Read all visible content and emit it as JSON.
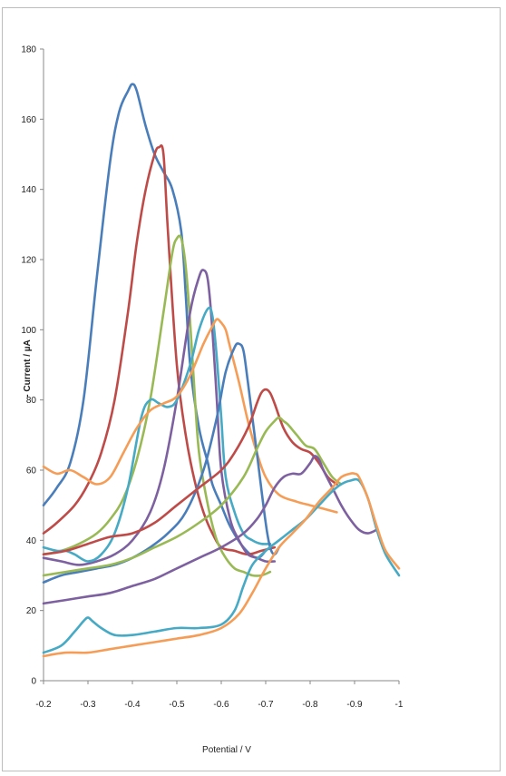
{
  "chart_data": {
    "type": "line",
    "xlabel": "Potential / V",
    "ylabel": "- Current / µA",
    "xlim": [
      -0.2,
      -1.0
    ],
    "ylim": [
      0,
      180
    ],
    "x_ticks": [
      "-0.2",
      "-0.3",
      "-0.4",
      "-0.5",
      "-0.6",
      "-0.7",
      "-0.8",
      "-0.9",
      "-1"
    ],
    "y_ticks": [
      "0",
      "20",
      "40",
      "60",
      "80",
      "100",
      "120",
      "140",
      "160",
      "180"
    ],
    "grid": false,
    "legend": "none",
    "series": [
      {
        "color": "#4a7ebb",
        "x": [
          -0.2,
          -0.23,
          -0.26,
          -0.29,
          -0.32,
          -0.35,
          -0.37,
          -0.39,
          -0.4,
          -0.41,
          -0.43,
          -0.45,
          -0.47,
          -0.49,
          -0.51,
          -0.52,
          -0.53,
          -0.55,
          -0.57,
          -0.58,
          -0.6,
          -0.62,
          -0.65,
          -0.68,
          -0.7
        ],
        "y": [
          50,
          55,
          62,
          80,
          115,
          148,
          162,
          168,
          170,
          168,
          158,
          150,
          145,
          140,
          128,
          110,
          90,
          72,
          62,
          56,
          50,
          44,
          38,
          35,
          37
        ]
      },
      {
        "color": "#be4b48",
        "x": [
          -0.2,
          -0.23,
          -0.27,
          -0.3,
          -0.33,
          -0.36,
          -0.39,
          -0.41,
          -0.43,
          -0.45,
          -0.46,
          -0.47,
          -0.48,
          -0.5,
          -0.52,
          -0.54,
          -0.56,
          -0.58,
          -0.6,
          -0.63,
          -0.66,
          -0.69,
          -0.72
        ],
        "y": [
          42,
          45,
          50,
          56,
          65,
          80,
          105,
          125,
          140,
          150,
          152,
          150,
          128,
          90,
          70,
          57,
          48,
          42,
          38,
          37,
          36,
          37,
          38
        ]
      },
      {
        "color": "#98b954",
        "x": [
          -0.2,
          -0.24,
          -0.28,
          -0.32,
          -0.35,
          -0.38,
          -0.41,
          -0.44,
          -0.47,
          -0.49,
          -0.5,
          -0.51,
          -0.52,
          -0.53,
          -0.54,
          -0.55,
          -0.57,
          -0.59,
          -0.61,
          -0.63,
          -0.65,
          -0.67,
          -0.69,
          -0.71
        ],
        "y": [
          36,
          37,
          39,
          42,
          46,
          52,
          63,
          80,
          105,
          122,
          126,
          126,
          118,
          102,
          82,
          65,
          50,
          40,
          35,
          32,
          31,
          30,
          30,
          31
        ]
      },
      {
        "color": "#7d60a0",
        "x": [
          -0.2,
          -0.24,
          -0.28,
          -0.32,
          -0.36,
          -0.4,
          -0.44,
          -0.47,
          -0.5,
          -0.53,
          -0.55,
          -0.56,
          -0.57,
          -0.58,
          -0.59,
          -0.6,
          -0.62,
          -0.64,
          -0.66,
          -0.68,
          -0.7,
          -0.72
        ],
        "y": [
          35,
          34,
          33,
          34,
          36,
          40,
          48,
          60,
          80,
          105,
          115,
          117,
          114,
          100,
          80,
          60,
          46,
          40,
          36,
          35,
          34,
          34
        ]
      },
      {
        "color": "#46aac5",
        "x": [
          -0.2,
          -0.23,
          -0.25,
          -0.27,
          -0.3,
          -0.33,
          -0.36,
          -0.39,
          -0.42,
          -0.44,
          -0.46,
          -0.48,
          -0.5,
          -0.53,
          -0.55,
          -0.57,
          -0.58,
          -0.59,
          -0.6,
          -0.61,
          -0.63,
          -0.65,
          -0.67,
          -0.69,
          -0.71
        ],
        "y": [
          38,
          37,
          37,
          36,
          34,
          36,
          42,
          55,
          75,
          80,
          79,
          78,
          80,
          90,
          100,
          106,
          104,
          92,
          75,
          58,
          48,
          42,
          40,
          39,
          39
        ]
      },
      {
        "color": "#f59d56",
        "x": [
          -0.2,
          -0.23,
          -0.26,
          -0.29,
          -0.32,
          -0.35,
          -0.38,
          -0.41,
          -0.44,
          -0.47,
          -0.5,
          -0.53,
          -0.56,
          -0.58,
          -0.59,
          -0.6,
          -0.61,
          -0.62,
          -0.64,
          -0.66,
          -0.68,
          -0.7,
          -0.73,
          -0.77,
          -0.8,
          -0.83,
          -0.86
        ],
        "y": [
          61,
          59,
          60,
          58,
          56,
          58,
          65,
          72,
          77,
          79,
          81,
          87,
          96,
          101,
          103,
          102,
          100,
          95,
          85,
          74,
          65,
          58,
          53,
          51,
          50,
          49,
          48
        ]
      },
      {
        "color": "#4a7ebb",
        "x": [
          -0.2,
          -0.24,
          -0.28,
          -0.32,
          -0.36,
          -0.4,
          -0.44,
          -0.48,
          -0.52,
          -0.56,
          -0.59,
          -0.61,
          -0.63,
          -0.64,
          -0.65,
          -0.66,
          -0.68,
          -0.7,
          -0.71,
          -0.72,
          -0.73
        ],
        "y": [
          28,
          30,
          31,
          32,
          33,
          35,
          38,
          42,
          48,
          60,
          75,
          88,
          95,
          96,
          94,
          85,
          65,
          45,
          38,
          36,
          38
        ]
      },
      {
        "color": "#be4b48",
        "x": [
          -0.2,
          -0.25,
          -0.3,
          -0.35,
          -0.4,
          -0.45,
          -0.5,
          -0.55,
          -0.6,
          -0.63,
          -0.66,
          -0.68,
          -0.69,
          -0.7,
          -0.71,
          -0.72,
          -0.74,
          -0.76,
          -0.78,
          -0.8,
          -0.82,
          -0.84,
          -0.86
        ],
        "y": [
          36,
          37,
          39,
          41,
          42,
          45,
          50,
          55,
          60,
          65,
          72,
          79,
          82,
          83,
          82,
          79,
          72,
          68,
          66,
          65,
          62,
          58,
          56
        ]
      },
      {
        "color": "#98b954",
        "x": [
          -0.2,
          -0.25,
          -0.3,
          -0.35,
          -0.4,
          -0.45,
          -0.5,
          -0.55,
          -0.6,
          -0.65,
          -0.68,
          -0.7,
          -0.72,
          -0.73,
          -0.74,
          -0.75,
          -0.77,
          -0.79,
          -0.81,
          -0.83,
          -0.85,
          -0.87
        ],
        "y": [
          30,
          31,
          32,
          33,
          35,
          38,
          41,
          45,
          50,
          58,
          66,
          71,
          74,
          75,
          74,
          73,
          70,
          67,
          66,
          62,
          58,
          56
        ]
      },
      {
        "color": "#7d60a0",
        "x": [
          -0.2,
          -0.25,
          -0.3,
          -0.35,
          -0.4,
          -0.45,
          -0.5,
          -0.55,
          -0.6,
          -0.65,
          -0.68,
          -0.7,
          -0.72,
          -0.74,
          -0.76,
          -0.78,
          -0.8,
          -0.81,
          -0.82,
          -0.83,
          -0.85,
          -0.87,
          -0.89,
          -0.91,
          -0.93,
          -0.95
        ],
        "y": [
          22,
          23,
          24,
          25,
          27,
          29,
          32,
          35,
          38,
          42,
          46,
          50,
          55,
          58,
          59,
          59,
          62,
          64,
          63,
          60,
          55,
          50,
          46,
          43,
          42,
          43
        ]
      },
      {
        "color": "#46aac5",
        "x": [
          -0.2,
          -0.24,
          -0.27,
          -0.29,
          -0.3,
          -0.31,
          -0.33,
          -0.36,
          -0.4,
          -0.45,
          -0.5,
          -0.55,
          -0.6,
          -0.63,
          -0.65,
          -0.67,
          -0.7,
          -0.73,
          -0.76,
          -0.79,
          -0.82,
          -0.85,
          -0.87,
          -0.89,
          -0.91,
          -0.93,
          -0.95,
          -0.97,
          -1.0
        ],
        "y": [
          8,
          10,
          14,
          17,
          18,
          17,
          15,
          13,
          13,
          14,
          15,
          15,
          16,
          20,
          27,
          33,
          37,
          40,
          43,
          46,
          50,
          54,
          56,
          57,
          57,
          52,
          43,
          36,
          30
        ]
      },
      {
        "color": "#f59d56",
        "x": [
          -0.2,
          -0.25,
          -0.3,
          -0.35,
          -0.4,
          -0.45,
          -0.5,
          -0.55,
          -0.6,
          -0.64,
          -0.67,
          -0.7,
          -0.73,
          -0.76,
          -0.79,
          -0.82,
          -0.85,
          -0.87,
          -0.89,
          -0.9,
          -0.91,
          -0.93,
          -0.95,
          -0.97,
          -1.0
        ],
        "y": [
          7,
          8,
          8,
          9,
          10,
          11,
          12,
          13,
          15,
          19,
          25,
          32,
          38,
          42,
          46,
          51,
          55,
          58,
          59,
          59,
          58,
          52,
          44,
          37,
          32
        ]
      }
    ]
  }
}
